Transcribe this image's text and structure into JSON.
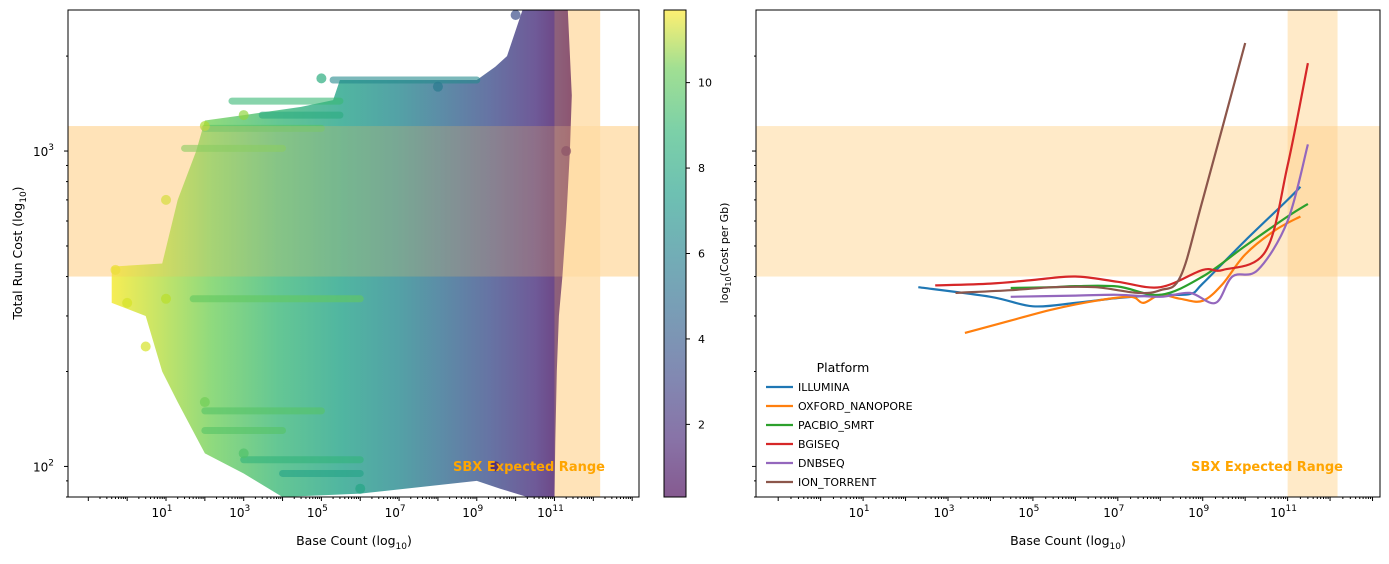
{
  "chart_data": [
    {
      "type": "scatter",
      "xlabel": "Base Count (log10)",
      "ylabel": "Total Run Cost (log10)",
      "xscale": "log",
      "yscale": "log",
      "xlim": [
        0.03,
        15000000000000.0
      ],
      "ylim": [
        80,
        2800
      ],
      "x_ticks": [
        "10^1",
        "10^3",
        "10^5",
        "10^7",
        "10^9",
        "10^11"
      ],
      "y_ticks": [
        "10^2",
        "10^3"
      ],
      "colorbar": {
        "label": "log10(Cost per Gb)",
        "range": [
          0.3,
          11.7
        ],
        "ticks": [
          "2",
          "4",
          "6",
          "8",
          "10"
        ],
        "colormap": "viridis"
      },
      "approx_points": [
        {
          "x": 0.5,
          "y": 420,
          "c": 11.3
        },
        {
          "x": 1,
          "y": 330,
          "c": 11.0
        },
        {
          "x": 3,
          "y": 240,
          "c": 11.0
        },
        {
          "x": 10,
          "y": 340,
          "c": 10.5
        },
        {
          "x": 10,
          "y": 700,
          "c": 10.8
        },
        {
          "x": 100,
          "y": 1200,
          "c": 10.3
        },
        {
          "x": 100,
          "y": 160,
          "c": 9.2
        },
        {
          "x": 1000,
          "y": 110,
          "c": 8.5
        },
        {
          "x": 1000,
          "y": 1300,
          "c": 9.8
        },
        {
          "x": 100000,
          "y": 1700,
          "c": 7.4
        },
        {
          "x": 1000000,
          "y": 85,
          "c": 7.0
        },
        {
          "x": 100000000.0,
          "y": 1600,
          "c": 5.0
        },
        {
          "x": 10000000000.0,
          "y": 2700,
          "c": 3.0
        },
        {
          "x": 3000000000.0,
          "y": 100,
          "c": 1.0
        },
        {
          "x": 200000000000.0,
          "y": 1000,
          "c": 0.5
        }
      ],
      "shaded_regions": [
        {
          "axis": "x",
          "from": 100000000000.0,
          "to": 1500000000000.0,
          "color": "#ffe8c2"
        },
        {
          "axis": "y",
          "from": 400,
          "to": 1200,
          "color": "#ffe8c2"
        }
      ],
      "annotation": "SBX Expected Range"
    },
    {
      "type": "line",
      "xlabel": "Base Count (log10)",
      "xscale": "log",
      "yscale": "log",
      "xlim": [
        0.03,
        15000000000000.0
      ],
      "ylim": [
        80,
        2800
      ],
      "x_ticks": [
        "10^1",
        "10^3",
        "10^5",
        "10^7",
        "10^9",
        "10^11"
      ],
      "legend": {
        "title": "Platform",
        "position": "lower-left"
      },
      "series": [
        {
          "name": "ILLUMINA",
          "color": "#1f77b4",
          "x": [
            200,
            10000,
            100000,
            1000000,
            10000000,
            100000000,
            500000000,
            1000000000,
            10000000000,
            100000000000,
            200000000000
          ],
          "y": [
            370,
            345,
            322,
            330,
            342,
            350,
            352,
            380,
            520,
            700,
            770
          ]
        },
        {
          "name": "OXFORD_NANOPORE",
          "color": "#ff7f0e",
          "x": [
            2500,
            30000,
            300000,
            3000000,
            20000000,
            40000000,
            100000000,
            300000000,
            1000000000,
            3000000000,
            10000000000,
            50000000000,
            200000000000
          ],
          "y": [
            265,
            290,
            315,
            335,
            345,
            330,
            350,
            340,
            335,
            380,
            470,
            560,
            620
          ]
        },
        {
          "name": "PACBIO_SMRT",
          "color": "#2ca02c",
          "x": [
            30000,
            300000,
            1000000,
            10000000,
            100000000,
            1000000000,
            10000000000,
            100000000000,
            300000000000
          ],
          "y": [
            368,
            370,
            373,
            372,
            350,
            400,
            500,
            620,
            680
          ]
        },
        {
          "name": "BGISEQ",
          "color": "#d62728",
          "x": [
            500,
            10000,
            100000,
            1000000,
            10000000,
            100000000,
            1000000000,
            3000000000,
            30000000000,
            100000000000,
            300000000000
          ],
          "y": [
            375,
            380,
            390,
            400,
            385,
            370,
            420,
            420,
            480,
            900,
            1900
          ]
        },
        {
          "name": "DNBSEQ",
          "color": "#9467bd",
          "x": [
            30000,
            1000000,
            10000000,
            100000000,
            500000000,
            2000000000,
            5000000000,
            20000000000,
            100000000000,
            300000000000
          ],
          "y": [
            345,
            348,
            350,
            345,
            355,
            330,
            400,
            420,
            600,
            1050
          ]
        },
        {
          "name": "ION_TORRENT",
          "color": "#8c564b",
          "x": [
            1500,
            30000,
            300000,
            3000000,
            30000000,
            100000000,
            300000000,
            1000000000,
            10000000000
          ],
          "y": [
            355,
            362,
            370,
            370,
            355,
            362,
            400,
            700,
            2200
          ]
        }
      ],
      "shaded_regions": [
        {
          "axis": "x",
          "from": 100000000000.0,
          "to": 1500000000000.0,
          "color": "#ffe8c2"
        },
        {
          "axis": "y",
          "from": 400,
          "to": 1200,
          "color": "#ffe8c2"
        }
      ],
      "annotation": "SBX Expected Range"
    }
  ],
  "labels": {
    "left_xlabel": "Base Count (log",
    "left_xlabel_sub": "10",
    "left_xlabel_end": ")",
    "left_ylabel": "Total Run Cost (log",
    "left_ylabel_sub": "10",
    "left_ylabel_end": ")",
    "right_xlabel": "Base Count (log",
    "right_xlabel_sub": "10",
    "right_xlabel_end": ")",
    "cb_label_pre": "log",
    "cb_label_sub": "10",
    "cb_label_post": "(Cost per Gb)",
    "sbx_left": "SBX Expected Range",
    "sbx_right": "SBX Expected Range",
    "legend_title": "Platform"
  },
  "colors": {
    "accent_orange": "#ffa500",
    "shade": "#ffe8c2"
  }
}
